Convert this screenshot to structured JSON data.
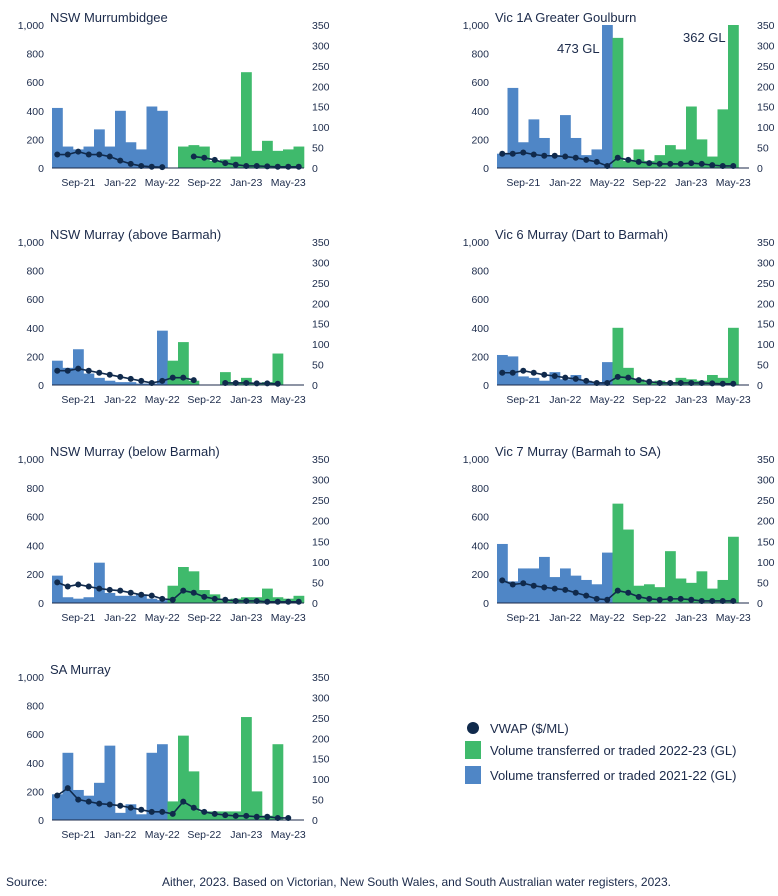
{
  "figure": {
    "colors": {
      "volume_2021_22": "#4f86c6",
      "volume_2022_23": "#3fba6c",
      "vwap": "#102a4c"
    },
    "legend": {
      "vwap": "VWAP ($/ML)",
      "vol_2022_23": "Volume transferred or traded 2022-23 (GL)",
      "vol_2021_22": "Volume transferred or traded 2021-22 (GL)"
    },
    "source_label": "Source:",
    "source_text": "Aither, 2023. Based on Victorian, New South Wales, and South Australian water registers, 2023."
  },
  "chart_data": [
    {
      "type": "bar",
      "title": "NSW Murrumbidgee",
      "x_ticks": [
        "Sep-21",
        "Jan-22",
        "May-22",
        "Sep-22",
        "Jan-23",
        "May-23"
      ],
      "y_left": {
        "min": 0,
        "max": 1000,
        "ticks": [
          "0",
          "200",
          "400",
          "600",
          "800",
          "1,000"
        ]
      },
      "y_right": {
        "min": 0,
        "max": 350,
        "ticks": [
          "0",
          "50",
          "100",
          "150",
          "200",
          "250",
          "300",
          "350"
        ]
      },
      "months": [
        "Jul-21",
        "Aug-21",
        "Sep-21",
        "Oct-21",
        "Nov-21",
        "Dec-21",
        "Jan-22",
        "Feb-22",
        "Mar-22",
        "Apr-22",
        "May-22",
        "Jun-22",
        "Jul-22",
        "Aug-22",
        "Sep-22",
        "Oct-22",
        "Nov-22",
        "Dec-22",
        "Jan-23",
        "Feb-23",
        "Mar-23",
        "Apr-23",
        "May-23",
        "Jun-23"
      ],
      "volume_2021_22": [
        420,
        150,
        130,
        150,
        270,
        150,
        400,
        180,
        130,
        430,
        400,
        null,
        null,
        null,
        null,
        null,
        null,
        null,
        null,
        null,
        null,
        null,
        null,
        null
      ],
      "volume_2022_23": [
        null,
        null,
        null,
        null,
        null,
        null,
        null,
        null,
        null,
        null,
        null,
        null,
        150,
        160,
        150,
        50,
        60,
        80,
        670,
        120,
        190,
        120,
        130,
        150
      ],
      "vwap": [
        33,
        33,
        40,
        33,
        33,
        28,
        18,
        10,
        5,
        3,
        2,
        null,
        null,
        28,
        25,
        20,
        12,
        8,
        5,
        5,
        4,
        3,
        3,
        3
      ],
      "annotations": []
    },
    {
      "type": "bar",
      "title": "Vic 1A Greater Goulburn",
      "x_ticks": [
        "Sep-21",
        "Jan-22",
        "May-22",
        "Sep-22",
        "Jan-23",
        "May-23"
      ],
      "y_left": {
        "min": 0,
        "max": 1000,
        "ticks": [
          "0",
          "200",
          "400",
          "600",
          "800",
          "1,000"
        ]
      },
      "y_right": {
        "min": 0,
        "max": 350,
        "ticks": [
          "0",
          "50",
          "100",
          "150",
          "200",
          "250",
          "300",
          "350"
        ]
      },
      "months": [
        "Jul-21",
        "Aug-21",
        "Sep-21",
        "Oct-21",
        "Nov-21",
        "Dec-21",
        "Jan-22",
        "Feb-22",
        "Mar-22",
        "Apr-22",
        "May-22",
        "Jun-22",
        "Jul-22",
        "Aug-22",
        "Sep-22",
        "Oct-22",
        "Nov-22",
        "Dec-22",
        "Jan-23",
        "Feb-23",
        "Mar-23",
        "Apr-23",
        "May-23",
        "Jun-23"
      ],
      "volume_2021_22": [
        100,
        560,
        180,
        340,
        210,
        90,
        370,
        210,
        90,
        130,
        1000,
        null,
        null,
        null,
        null,
        null,
        null,
        null,
        null,
        null,
        null,
        null,
        null,
        null
      ],
      "volume_2022_23": [
        null,
        null,
        null,
        null,
        null,
        null,
        null,
        null,
        null,
        null,
        null,
        910,
        50,
        130,
        50,
        90,
        160,
        130,
        430,
        200,
        80,
        410,
        1000,
        null
      ],
      "vwap": [
        35,
        35,
        38,
        33,
        30,
        30,
        28,
        25,
        20,
        15,
        5,
        25,
        20,
        15,
        12,
        10,
        10,
        10,
        12,
        10,
        7,
        5,
        5,
        null
      ],
      "annotations": [
        "473 GL",
        "362 GL"
      ]
    },
    {
      "type": "bar",
      "title": "NSW Murray (above Barmah)",
      "x_ticks": [
        "Sep-21",
        "Jan-22",
        "May-22",
        "Sep-22",
        "Jan-23",
        "May-23"
      ],
      "y_left": {
        "min": 0,
        "max": 1000,
        "ticks": [
          "0",
          "200",
          "400",
          "600",
          "800",
          "1,000"
        ]
      },
      "y_right": {
        "min": 0,
        "max": 350,
        "ticks": [
          "0",
          "50",
          "100",
          "150",
          "200",
          "250",
          "300",
          "350"
        ]
      },
      "months": [
        "Jul-21",
        "Aug-21",
        "Sep-21",
        "Oct-21",
        "Nov-21",
        "Dec-21",
        "Jan-22",
        "Feb-22",
        "Mar-22",
        "Apr-22",
        "May-22",
        "Jun-22",
        "Jul-22",
        "Aug-22",
        "Sep-22",
        "Oct-22",
        "Nov-22",
        "Dec-22",
        "Jan-23",
        "Feb-23",
        "Mar-23",
        "Apr-23",
        "May-23",
        "Jun-23"
      ],
      "volume_2021_22": [
        170,
        120,
        250,
        80,
        50,
        30,
        20,
        20,
        10,
        10,
        380,
        null,
        null,
        null,
        null,
        null,
        null,
        null,
        null,
        null,
        null,
        null,
        null,
        null
      ],
      "volume_2022_23": [
        null,
        null,
        null,
        null,
        null,
        null,
        null,
        null,
        null,
        null,
        null,
        170,
        300,
        30,
        null,
        null,
        90,
        20,
        50,
        10,
        20,
        220,
        null,
        null
      ],
      "vwap": [
        35,
        35,
        40,
        35,
        30,
        25,
        20,
        15,
        10,
        5,
        10,
        18,
        18,
        12,
        null,
        null,
        5,
        5,
        5,
        4,
        4,
        3,
        null,
        null
      ],
      "annotations": []
    },
    {
      "type": "bar",
      "title": "Vic 6 Murray (Dart to Barmah)",
      "x_ticks": [
        "Sep-21",
        "Jan-22",
        "May-22",
        "Sep-22",
        "Jan-23",
        "May-23"
      ],
      "y_left": {
        "min": 0,
        "max": 1000,
        "ticks": [
          "0",
          "200",
          "400",
          "600",
          "800",
          "1,000"
        ]
      },
      "y_right": {
        "min": 0,
        "max": 350,
        "ticks": [
          "0",
          "50",
          "100",
          "150",
          "200",
          "250",
          "300",
          "350"
        ]
      },
      "months": [
        "Jul-21",
        "Aug-21",
        "Sep-21",
        "Oct-21",
        "Nov-21",
        "Dec-21",
        "Jan-22",
        "Feb-22",
        "Mar-22",
        "Apr-22",
        "May-22",
        "Jun-22",
        "Jul-22",
        "Aug-22",
        "Sep-22",
        "Oct-22",
        "Nov-22",
        "Dec-22",
        "Jan-23",
        "Feb-23",
        "Mar-23",
        "Apr-23",
        "May-23",
        "Jun-23"
      ],
      "volume_2021_22": [
        210,
        200,
        60,
        50,
        30,
        90,
        40,
        70,
        30,
        20,
        160,
        null,
        null,
        null,
        null,
        null,
        null,
        null,
        null,
        null,
        null,
        null,
        null,
        null
      ],
      "volume_2022_23": [
        null,
        null,
        null,
        null,
        null,
        null,
        null,
        null,
        null,
        null,
        null,
        400,
        120,
        40,
        20,
        30,
        20,
        50,
        40,
        30,
        70,
        50,
        400,
        null
      ],
      "vwap": [
        30,
        30,
        35,
        30,
        25,
        22,
        18,
        15,
        10,
        5,
        5,
        20,
        18,
        12,
        8,
        5,
        5,
        5,
        5,
        5,
        4,
        3,
        3,
        null
      ],
      "annotations": []
    },
    {
      "type": "bar",
      "title": "NSW Murray (below Barmah)",
      "x_ticks": [
        "Sep-21",
        "Jan-22",
        "May-22",
        "Sep-22",
        "Jan-23",
        "May-23"
      ],
      "y_left": {
        "min": 0,
        "max": 1000,
        "ticks": [
          "0",
          "200",
          "400",
          "600",
          "800",
          "1,000"
        ]
      },
      "y_right": {
        "min": 0,
        "max": 350,
        "ticks": [
          "0",
          "50",
          "100",
          "150",
          "200",
          "250",
          "300",
          "350"
        ]
      },
      "months": [
        "Jul-21",
        "Aug-21",
        "Sep-21",
        "Oct-21",
        "Nov-21",
        "Dec-21",
        "Jan-22",
        "Feb-22",
        "Mar-22",
        "Apr-22",
        "May-22",
        "Jun-22",
        "Jul-22",
        "Aug-22",
        "Sep-22",
        "Oct-22",
        "Nov-22",
        "Dec-22",
        "Jan-23",
        "Feb-23",
        "Mar-23",
        "Apr-23",
        "May-23",
        "Jun-23"
      ],
      "volume_2021_22": [
        190,
        40,
        30,
        40,
        280,
        70,
        50,
        50,
        60,
        30,
        20,
        null,
        null,
        null,
        null,
        null,
        null,
        null,
        null,
        null,
        null,
        null,
        null,
        null
      ],
      "volume_2022_23": [
        null,
        null,
        null,
        null,
        null,
        null,
        null,
        null,
        null,
        null,
        null,
        120,
        250,
        220,
        90,
        60,
        20,
        30,
        40,
        40,
        100,
        40,
        30,
        50
      ],
      "vwap": [
        50,
        40,
        45,
        40,
        35,
        32,
        30,
        25,
        20,
        18,
        10,
        8,
        30,
        25,
        15,
        10,
        8,
        5,
        5,
        5,
        3,
        3,
        3,
        3
      ],
      "annotations": []
    },
    {
      "type": "bar",
      "title": "Vic 7 Murray (Barmah to SA)",
      "x_ticks": [
        "Sep-21",
        "Jan-22",
        "May-22",
        "Sep-22",
        "Jan-23",
        "May-23"
      ],
      "y_left": {
        "min": 0,
        "max": 1000,
        "ticks": [
          "0",
          "200",
          "400",
          "600",
          "800",
          "1,000"
        ]
      },
      "y_right": {
        "min": 0,
        "max": 350,
        "ticks": [
          "0",
          "50",
          "100",
          "150",
          "200",
          "250",
          "300",
          "350"
        ]
      },
      "months": [
        "Jul-21",
        "Aug-21",
        "Sep-21",
        "Oct-21",
        "Nov-21",
        "Dec-21",
        "Jan-22",
        "Feb-22",
        "Mar-22",
        "Apr-22",
        "May-22",
        "Jun-22",
        "Jul-22",
        "Aug-22",
        "Sep-22",
        "Oct-22",
        "Nov-22",
        "Dec-22",
        "Jan-23",
        "Feb-23",
        "Mar-23",
        "Apr-23",
        "May-23",
        "Jun-23"
      ],
      "volume_2021_22": [
        410,
        150,
        240,
        240,
        320,
        180,
        240,
        190,
        160,
        130,
        350,
        null,
        null,
        null,
        null,
        null,
        null,
        null,
        null,
        null,
        null,
        null,
        null,
        null
      ],
      "volume_2022_23": [
        null,
        null,
        null,
        null,
        null,
        null,
        null,
        null,
        null,
        null,
        null,
        690,
        510,
        120,
        130,
        110,
        360,
        170,
        140,
        220,
        100,
        160,
        460,
        null
      ],
      "vwap": [
        55,
        45,
        48,
        42,
        38,
        35,
        32,
        25,
        18,
        10,
        8,
        30,
        25,
        15,
        10,
        8,
        10,
        10,
        8,
        5,
        5,
        5,
        5,
        null
      ],
      "annotations": []
    },
    {
      "type": "bar",
      "title": "SA Murray",
      "x_ticks": [
        "Sep-21",
        "Jan-22",
        "May-22",
        "Sep-22",
        "Jan-23",
        "May-23"
      ],
      "y_left": {
        "min": 0,
        "max": 1000,
        "ticks": [
          "0",
          "200",
          "400",
          "600",
          "800",
          "1,000"
        ]
      },
      "y_right": {
        "min": 0,
        "max": 350,
        "ticks": [
          "0",
          "50",
          "100",
          "150",
          "200",
          "250",
          "300",
          "350"
        ]
      },
      "months": [
        "Jul-21",
        "Aug-21",
        "Sep-21",
        "Oct-21",
        "Nov-21",
        "Dec-21",
        "Jan-22",
        "Feb-22",
        "Mar-22",
        "Apr-22",
        "May-22",
        "Jun-22",
        "Jul-22",
        "Aug-22",
        "Sep-22",
        "Oct-22",
        "Nov-22",
        "Dec-22",
        "Jan-23",
        "Feb-23",
        "Mar-23",
        "Apr-23",
        "May-23",
        "Jun-23"
      ],
      "volume_2021_22": [
        180,
        470,
        210,
        170,
        260,
        520,
        50,
        110,
        40,
        470,
        530,
        null,
        null,
        null,
        null,
        null,
        null,
        null,
        null,
        null,
        null,
        null,
        null,
        null
      ],
      "volume_2022_23": [
        null,
        null,
        null,
        null,
        null,
        null,
        null,
        null,
        null,
        null,
        null,
        130,
        590,
        340,
        60,
        60,
        60,
        60,
        720,
        200,
        30,
        530,
        null,
        null
      ],
      "vwap": [
        60,
        78,
        50,
        45,
        40,
        38,
        35,
        30,
        25,
        20,
        20,
        15,
        45,
        30,
        20,
        15,
        12,
        10,
        10,
        8,
        8,
        5,
        5,
        null
      ],
      "annotations": []
    }
  ]
}
